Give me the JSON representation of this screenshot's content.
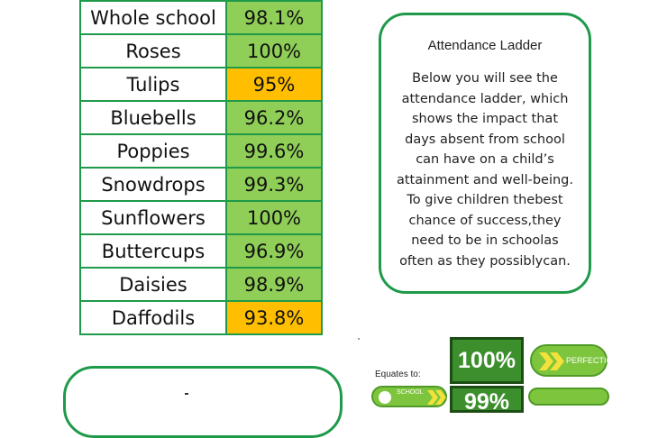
{
  "attendance_table": {
    "rows": [
      {
        "class": "Whole school",
        "percent": "98.1%",
        "status": "green"
      },
      {
        "class": "Roses",
        "percent": "100%",
        "status": "green"
      },
      {
        "class": "Tulips",
        "percent": "95%",
        "status": "amber"
      },
      {
        "class": "Bluebells",
        "percent": "96.2%",
        "status": "green"
      },
      {
        "class": "Poppies",
        "percent": "99.6%",
        "status": "green"
      },
      {
        "class": "Snowdrops",
        "percent": "99.3%",
        "status": "green"
      },
      {
        "class": "Sunflowers",
        "percent": "100%",
        "status": "green"
      },
      {
        "class": "Buttercups",
        "percent": "96.9%",
        "status": "green"
      },
      {
        "class": "Daisies",
        "percent": "98.9%",
        "status": "green"
      },
      {
        "class": "Daffodils",
        "percent": "93.8%",
        "status": "amber"
      }
    ]
  },
  "info_box": {
    "title": "Attendance Ladder",
    "body_lines": [
      "Below you will see the",
      "attendance ladder, which",
      "shows the impact that",
      "days absent from school",
      "can have on a child’s",
      "attainment and well-being.",
      "To give children thebest",
      "chance of success,they",
      "need to be in schoolas",
      "often as they possiblycan."
    ]
  },
  "ladder": {
    "equates_label": "Equates to:",
    "top_rung": "100%",
    "top_label": "PERFECTION",
    "next_rung": "99%",
    "school_label": "SCHOOL"
  },
  "colors": {
    "border_green": "#1f9a4a",
    "cell_green": "#8fce57",
    "cell_amber": "#ffbf00",
    "ladder_dark": "#3c8f2c",
    "pill_green": "#7ec53e"
  }
}
